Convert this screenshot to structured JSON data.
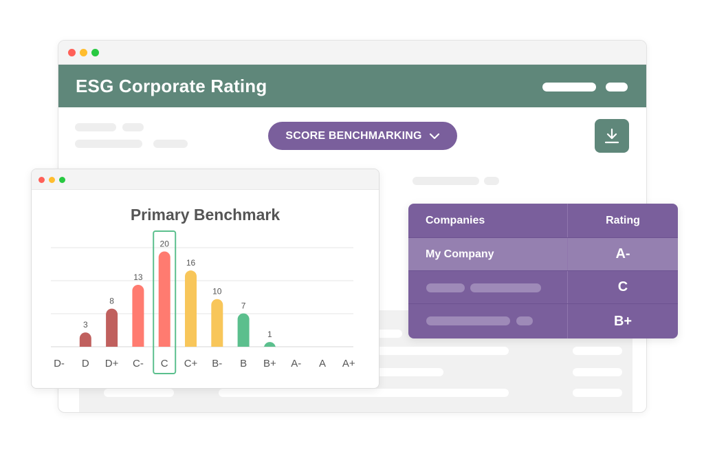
{
  "app": {
    "title": "ESG Corporate Rating"
  },
  "toolbar": {
    "score_button_label": "SCORE BENCHMARKING",
    "score_button_icon": "chevron-down-icon",
    "download_icon": "download-icon"
  },
  "colors": {
    "header_green": "#5f877a",
    "accent_purple": "#7a5f9c",
    "bar_dark_red": "#c0605e",
    "bar_red": "#ff7b70",
    "bar_yellow": "#f8c65a",
    "bar_green": "#5bbf8d",
    "highlight_border": "#5bbf8d"
  },
  "chart_data": {
    "type": "bar",
    "title": "Primary Benchmark",
    "categories": [
      "D-",
      "D",
      "D+",
      "C-",
      "C",
      "C+",
      "B-",
      "B",
      "B+",
      "A-",
      "A",
      "A+"
    ],
    "values": [
      null,
      3,
      8,
      13,
      20,
      16,
      10,
      7,
      1,
      null,
      null,
      null
    ],
    "data_labels": [
      "",
      "3",
      "8",
      "13",
      "20",
      "16",
      "10",
      "7",
      "1",
      "",
      "",
      ""
    ],
    "bar_colors": [
      "#c0605e",
      "#c0605e",
      "#c0605e",
      "#ff7b70",
      "#ff7b70",
      "#f8c65a",
      "#f8c65a",
      "#5bbf8d",
      "#5bbf8d",
      "#5bbf8d",
      "#5bbf8d",
      "#5bbf8d"
    ],
    "highlighted_category": "C",
    "ylim": [
      0,
      20.5
    ],
    "grid": true,
    "xlabel": "",
    "ylabel": ""
  },
  "table": {
    "headers": [
      "Companies",
      "Rating"
    ],
    "rows": [
      {
        "company": "My Company",
        "rating": "A-",
        "highlight": true
      },
      {
        "company": "",
        "rating": "C",
        "highlight": false
      },
      {
        "company": "",
        "rating": "B+",
        "highlight": false
      }
    ]
  }
}
